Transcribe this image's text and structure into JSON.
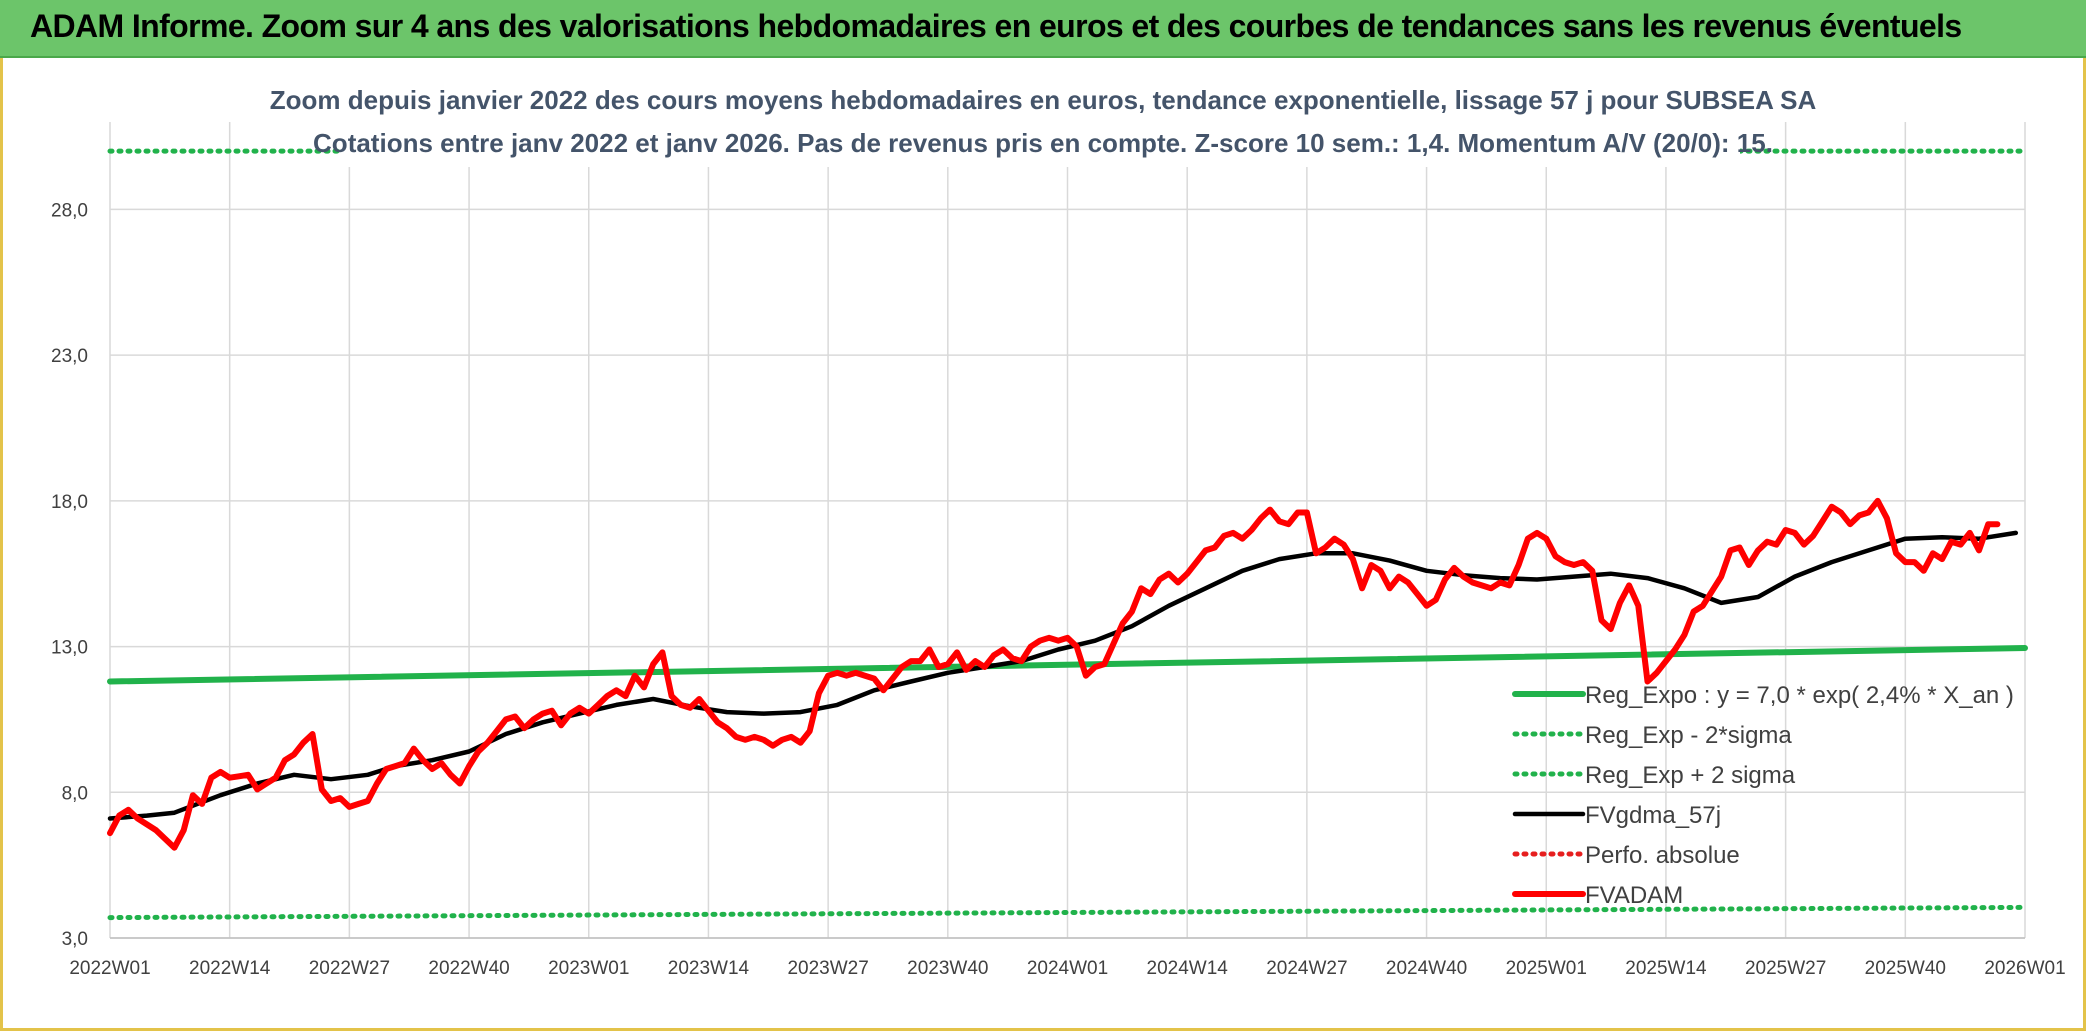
{
  "header": {
    "title": "ADAM Informe. Zoom sur 4 ans des valorisations hebdomadaires en euros et des courbes de tendances sans les revenus éventuels"
  },
  "chart_data": {
    "type": "line",
    "title": "Zoom depuis janvier 2022 des cours moyens hebdomadaires en euros, tendance exponentielle, lissage 57 j pour SUBSEA SA",
    "subtitle": "Cotations entre janv 2022 et janv 2026. Pas de revenus pris en compte. Z-score 10 sem.: 1,4. Momentum A/V (20/0): 15.",
    "xlabel": "",
    "ylabel": "",
    "ylim": [
      3,
      31
    ],
    "yticks": [
      "3,0",
      "8,0",
      "13,0",
      "18,0",
      "23,0",
      "28,0"
    ],
    "ytick_values": [
      3,
      8,
      13,
      18,
      23,
      28
    ],
    "xticks": [
      "2022W01",
      "2022W14",
      "2022W27",
      "2022W40",
      "2023W01",
      "2023W14",
      "2023W27",
      "2023W40",
      "2024W01",
      "2024W14",
      "2024W27",
      "2024W40",
      "2025W01",
      "2025W14",
      "2025W27",
      "2025W40",
      "2026W01"
    ],
    "x_range_weeks": [
      0,
      208
    ],
    "grid": true,
    "legend_position": "bottom-right",
    "series": [
      {
        "name": "Reg_Expo : y = 7,0 * exp( 2,4% *  X_an )",
        "style": "solid",
        "color": "#21b24b",
        "points": [
          [
            0,
            11.8
          ],
          [
            208,
            12.95
          ]
        ]
      },
      {
        "name": "Reg_Exp - 2*sigma",
        "style": "dotted",
        "color": "#21b24b",
        "points": [
          [
            0,
            3.7
          ],
          [
            208,
            4.05
          ]
        ]
      },
      {
        "name": "Reg_Exp + 2 sigma",
        "style": "dotted",
        "color": "#21b24b",
        "points": [
          [
            0,
            30.0
          ],
          [
            208,
            30.0
          ]
        ]
      },
      {
        "name": "FVgdma_57j",
        "style": "solid",
        "color": "#000000",
        "points": [
          [
            0,
            7.1
          ],
          [
            4,
            7.2
          ],
          [
            7,
            7.3
          ],
          [
            12,
            7.9
          ],
          [
            16,
            8.3
          ],
          [
            20,
            8.6
          ],
          [
            24,
            8.45
          ],
          [
            28,
            8.6
          ],
          [
            31,
            8.9
          ],
          [
            35,
            9.1
          ],
          [
            39,
            9.4
          ],
          [
            43,
            10.0
          ],
          [
            47,
            10.4
          ],
          [
            51,
            10.7
          ],
          [
            55,
            11.0
          ],
          [
            59,
            11.2
          ],
          [
            63,
            10.95
          ],
          [
            67,
            10.75
          ],
          [
            71,
            10.7
          ],
          [
            75,
            10.75
          ],
          [
            79,
            11.0
          ],
          [
            83,
            11.5
          ],
          [
            87,
            11.8
          ],
          [
            91,
            12.1
          ],
          [
            95,
            12.3
          ],
          [
            99,
            12.5
          ],
          [
            103,
            12.9
          ],
          [
            107,
            13.2
          ],
          [
            111,
            13.7
          ],
          [
            115,
            14.4
          ],
          [
            119,
            15.0
          ],
          [
            123,
            15.6
          ],
          [
            127,
            16.0
          ],
          [
            131,
            16.2
          ],
          [
            135,
            16.2
          ],
          [
            139,
            15.95
          ],
          [
            143,
            15.6
          ],
          [
            147,
            15.45
          ],
          [
            151,
            15.35
          ],
          [
            155,
            15.3
          ],
          [
            159,
            15.4
          ],
          [
            163,
            15.5
          ],
          [
            167,
            15.35
          ],
          [
            171,
            15.0
          ],
          [
            175,
            14.5
          ],
          [
            179,
            14.7
          ],
          [
            183,
            15.4
          ],
          [
            187,
            15.9
          ],
          [
            191,
            16.3
          ],
          [
            195,
            16.7
          ],
          [
            199,
            16.75
          ],
          [
            203,
            16.7
          ],
          [
            207,
            16.9
          ]
        ]
      },
      {
        "name": "Perfo. absolue",
        "style": "dotted",
        "color": "#e61e1e",
        "points": []
      },
      {
        "name": "FVADAM",
        "style": "solid",
        "color": "#ff0000",
        "points": [
          [
            0,
            6.6
          ],
          [
            1,
            7.2
          ],
          [
            2,
            7.4
          ],
          [
            3,
            7.1
          ],
          [
            4,
            6.9
          ],
          [
            5,
            6.7
          ],
          [
            6,
            6.4
          ],
          [
            7,
            6.1
          ],
          [
            8,
            6.7
          ],
          [
            9,
            7.9
          ],
          [
            10,
            7.6
          ],
          [
            11,
            8.5
          ],
          [
            12,
            8.7
          ],
          [
            13,
            8.5
          ],
          [
            14,
            8.55
          ],
          [
            15,
            8.6
          ],
          [
            16,
            8.1
          ],
          [
            17,
            8.3
          ],
          [
            18,
            8.5
          ],
          [
            19,
            9.1
          ],
          [
            20,
            9.3
          ],
          [
            21,
            9.7
          ],
          [
            22,
            10.0
          ],
          [
            23,
            8.1
          ],
          [
            24,
            7.7
          ],
          [
            25,
            7.8
          ],
          [
            26,
            7.5
          ],
          [
            27,
            7.6
          ],
          [
            28,
            7.7
          ],
          [
            29,
            8.3
          ],
          [
            30,
            8.8
          ],
          [
            31,
            8.9
          ],
          [
            32,
            9.0
          ],
          [
            33,
            9.5
          ],
          [
            34,
            9.1
          ],
          [
            35,
            8.8
          ],
          [
            36,
            9.0
          ],
          [
            37,
            8.6
          ],
          [
            38,
            8.3
          ],
          [
            39,
            8.9
          ],
          [
            40,
            9.4
          ],
          [
            41,
            9.7
          ],
          [
            42,
            10.1
          ],
          [
            43,
            10.5
          ],
          [
            44,
            10.6
          ],
          [
            45,
            10.2
          ],
          [
            46,
            10.5
          ],
          [
            47,
            10.7
          ],
          [
            48,
            10.8
          ],
          [
            49,
            10.3
          ],
          [
            50,
            10.7
          ],
          [
            51,
            10.9
          ],
          [
            52,
            10.7
          ],
          [
            53,
            11.0
          ],
          [
            54,
            11.3
          ],
          [
            55,
            11.5
          ],
          [
            56,
            11.3
          ],
          [
            57,
            12.0
          ],
          [
            58,
            11.6
          ],
          [
            59,
            12.4
          ],
          [
            60,
            12.8
          ],
          [
            61,
            11.3
          ],
          [
            62,
            11.0
          ],
          [
            63,
            10.9
          ],
          [
            64,
            11.2
          ],
          [
            65,
            10.8
          ],
          [
            66,
            10.4
          ],
          [
            67,
            10.2
          ],
          [
            68,
            9.9
          ],
          [
            69,
            9.8
          ],
          [
            70,
            9.9
          ],
          [
            71,
            9.8
          ],
          [
            72,
            9.6
          ],
          [
            73,
            9.8
          ],
          [
            74,
            9.9
          ],
          [
            75,
            9.7
          ],
          [
            76,
            10.1
          ],
          [
            77,
            11.4
          ],
          [
            78,
            12.0
          ],
          [
            79,
            12.1
          ],
          [
            80,
            12.0
          ],
          [
            81,
            12.1
          ],
          [
            82,
            12.0
          ],
          [
            83,
            11.9
          ],
          [
            84,
            11.5
          ],
          [
            85,
            11.9
          ],
          [
            86,
            12.3
          ],
          [
            87,
            12.5
          ],
          [
            88,
            12.5
          ],
          [
            89,
            12.9
          ],
          [
            90,
            12.3
          ],
          [
            91,
            12.4
          ],
          [
            92,
            12.8
          ],
          [
            93,
            12.2
          ],
          [
            94,
            12.5
          ],
          [
            95,
            12.3
          ],
          [
            96,
            12.7
          ],
          [
            97,
            12.9
          ],
          [
            98,
            12.6
          ],
          [
            99,
            12.5
          ],
          [
            100,
            13.0
          ],
          [
            101,
            13.2
          ],
          [
            102,
            13.3
          ],
          [
            103,
            13.2
          ],
          [
            104,
            13.3
          ],
          [
            105,
            13.0
          ],
          [
            106,
            12.0
          ],
          [
            107,
            12.3
          ],
          [
            108,
            12.4
          ],
          [
            109,
            13.1
          ],
          [
            110,
            13.8
          ],
          [
            111,
            14.2
          ],
          [
            112,
            15.0
          ],
          [
            113,
            14.8
          ],
          [
            114,
            15.3
          ],
          [
            115,
            15.5
          ],
          [
            116,
            15.2
          ],
          [
            117,
            15.5
          ],
          [
            118,
            15.9
          ],
          [
            119,
            16.3
          ],
          [
            120,
            16.4
          ],
          [
            121,
            16.8
          ],
          [
            122,
            16.9
          ],
          [
            123,
            16.7
          ],
          [
            124,
            17.0
          ],
          [
            125,
            17.4
          ],
          [
            126,
            17.7
          ],
          [
            127,
            17.3
          ],
          [
            128,
            17.2
          ],
          [
            129,
            17.6
          ],
          [
            130,
            17.6
          ],
          [
            131,
            16.2
          ],
          [
            132,
            16.4
          ],
          [
            133,
            16.7
          ],
          [
            134,
            16.5
          ],
          [
            135,
            16.0
          ],
          [
            136,
            15.0
          ],
          [
            137,
            15.8
          ],
          [
            138,
            15.6
          ],
          [
            139,
            15.0
          ],
          [
            140,
            15.4
          ],
          [
            141,
            15.2
          ],
          [
            142,
            14.8
          ],
          [
            143,
            14.4
          ],
          [
            144,
            14.6
          ],
          [
            145,
            15.3
          ],
          [
            146,
            15.7
          ],
          [
            147,
            15.4
          ],
          [
            148,
            15.2
          ],
          [
            149,
            15.1
          ],
          [
            150,
            15.0
          ],
          [
            151,
            15.2
          ],
          [
            152,
            15.1
          ],
          [
            153,
            15.8
          ],
          [
            154,
            16.7
          ],
          [
            155,
            16.9
          ],
          [
            156,
            16.7
          ],
          [
            157,
            16.1
          ],
          [
            158,
            15.9
          ],
          [
            159,
            15.8
          ],
          [
            160,
            15.9
          ],
          [
            161,
            15.6
          ],
          [
            162,
            13.9
          ],
          [
            163,
            13.6
          ],
          [
            164,
            14.5
          ],
          [
            165,
            15.1
          ],
          [
            166,
            14.4
          ],
          [
            167,
            11.8
          ],
          [
            168,
            12.1
          ],
          [
            169,
            12.5
          ],
          [
            170,
            12.9
          ],
          [
            171,
            13.4
          ],
          [
            172,
            14.2
          ],
          [
            173,
            14.4
          ],
          [
            174,
            14.9
          ],
          [
            175,
            15.4
          ],
          [
            176,
            16.3
          ],
          [
            177,
            16.4
          ],
          [
            178,
            15.8
          ],
          [
            179,
            16.3
          ],
          [
            180,
            16.6
          ],
          [
            181,
            16.5
          ],
          [
            182,
            17.0
          ],
          [
            183,
            16.9
          ],
          [
            184,
            16.5
          ],
          [
            185,
            16.8
          ],
          [
            186,
            17.3
          ],
          [
            187,
            17.8
          ],
          [
            188,
            17.6
          ],
          [
            189,
            17.2
          ],
          [
            190,
            17.5
          ],
          [
            191,
            17.6
          ],
          [
            192,
            18.0
          ],
          [
            193,
            17.4
          ],
          [
            194,
            16.2
          ],
          [
            195,
            15.9
          ],
          [
            196,
            15.9
          ],
          [
            197,
            15.6
          ],
          [
            198,
            16.2
          ],
          [
            199,
            16.0
          ],
          [
            200,
            16.6
          ],
          [
            201,
            16.5
          ],
          [
            202,
            16.9
          ],
          [
            203,
            16.3
          ],
          [
            204,
            17.2
          ],
          [
            205,
            17.2
          ]
        ]
      }
    ]
  }
}
